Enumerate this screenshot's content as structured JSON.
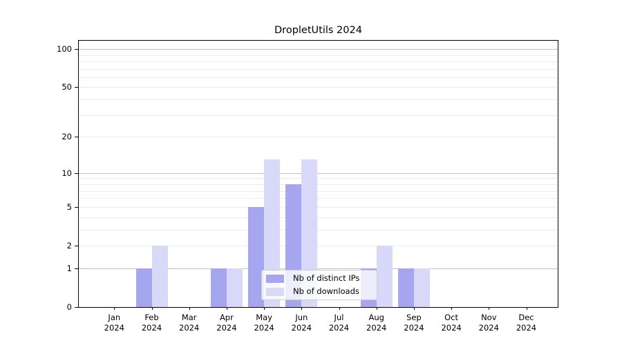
{
  "chart_data": {
    "type": "bar",
    "title": "DropletUtils 2024",
    "categories": [
      "Jan 2024",
      "Feb 2024",
      "Mar 2024",
      "Apr 2024",
      "May 2024",
      "Jun 2024",
      "Jul 2024",
      "Aug 2024",
      "Sep 2024",
      "Oct 2024",
      "Nov 2024",
      "Dec 2024"
    ],
    "series": [
      {
        "name": "Nb of distinct IPs",
        "color": "#a5a5f0",
        "values": [
          0,
          1,
          0,
          1,
          5,
          8,
          0,
          1,
          1,
          0,
          0,
          0
        ]
      },
      {
        "name": "Nb of downloads",
        "color": "#d8d8f8",
        "values": [
          0,
          2,
          0,
          1,
          13,
          13,
          0,
          2,
          1,
          0,
          0,
          0
        ]
      }
    ],
    "y_scale": "log1p",
    "ylim": [
      0,
      117.6
    ],
    "y_ticks": [
      0,
      1,
      2,
      5,
      10,
      20,
      50,
      100
    ],
    "major_gridlines": [
      1,
      10,
      100
    ],
    "minor_gridlines": [
      2,
      3,
      4,
      5,
      6,
      7,
      8,
      9,
      20,
      30,
      40,
      50,
      60,
      70,
      80,
      90
    ],
    "grid": "horizontal",
    "legend_position": "lower center"
  }
}
